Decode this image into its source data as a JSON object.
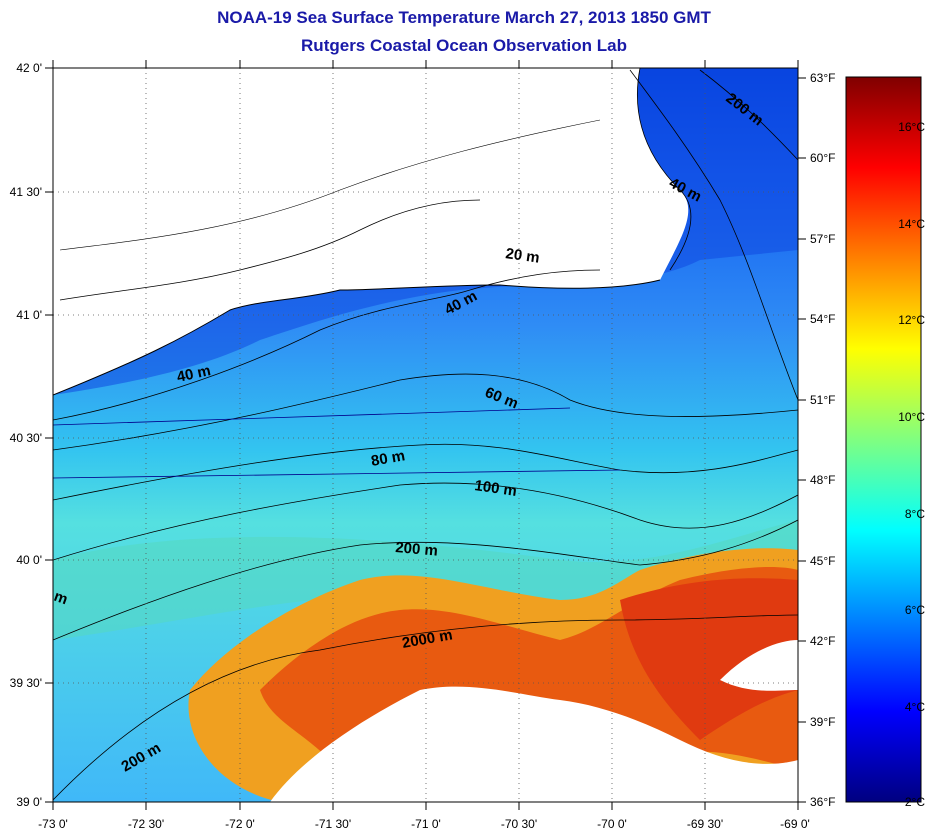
{
  "title": {
    "line1": "NOAA-19 Sea Surface Temperature March 27, 2013 1850 GMT",
    "line2": "Rutgers Coastal Ocean Observation Lab"
  },
  "axes": {
    "lon_labels": [
      "-73 0'",
      "-72 30'",
      "-72 0'",
      "-71 30'",
      "-71 0'",
      "-70 30'",
      "-70 0'",
      "-69 30'",
      "-69 0'"
    ],
    "lat_labels": [
      "42 0'",
      "41 30'",
      "41 0'",
      "40 30'",
      "40 0'",
      "39 30'",
      "39 0'"
    ],
    "lon_range": [
      -73,
      -69
    ],
    "lat_range": [
      39,
      42
    ],
    "grid": "dotted"
  },
  "fahrenheit_scale": [
    "63°F",
    "60°F",
    "57°F",
    "54°F",
    "51°F",
    "48°F",
    "45°F",
    "42°F",
    "39°F",
    "36°F"
  ],
  "colorbar": {
    "labels": [
      "16°C",
      "14°C",
      "12°C",
      "10°C",
      "8°C",
      "6°C",
      "4°C",
      "2°C"
    ],
    "range_c": [
      2,
      17
    ],
    "colors": [
      "#000080",
      "#0000ff",
      "#0080ff",
      "#00ffff",
      "#80ff80",
      "#ffff00",
      "#ff8000",
      "#ff0000",
      "#800000"
    ]
  },
  "contour_labels": [
    "200 m",
    "40 m",
    "20 m",
    "40 m",
    "40 m",
    "60 m",
    "80 m",
    "100 m",
    "200 m",
    "2000 m",
    "200 m",
    "m"
  ],
  "colors": {
    "title": "#1a1aa8",
    "land": "#ffffff",
    "coastline": "#000000"
  }
}
